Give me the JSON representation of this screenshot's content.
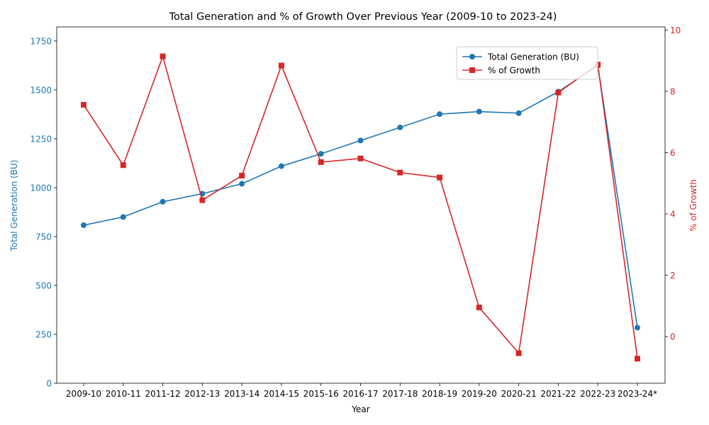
{
  "chart_data": {
    "type": "line",
    "title": "Total Generation and % of Growth Over Previous Year (2009-10 to 2023-24)",
    "xlabel": "Year",
    "categories": [
      "2009-10",
      "2010-11",
      "2011-12",
      "2012-13",
      "2013-14",
      "2014-15",
      "2015-16",
      "2016-17",
      "2017-18",
      "2018-19",
      "2019-20",
      "2020-21",
      "2021-22",
      "2022-23",
      "2023-24*"
    ],
    "series": [
      {
        "name": "Total Generation (BU)",
        "axis": "left",
        "color": "#1f77b4",
        "marker": "circle",
        "values": [
          808,
          850,
          928,
          969,
          1020,
          1110,
          1173,
          1241,
          1308,
          1376,
          1389,
          1381,
          1491,
          1624,
          284
        ]
      },
      {
        "name": "% of Growth",
        "axis": "right",
        "color": "#d62728",
        "marker": "square",
        "values": [
          7.56,
          5.59,
          9.14,
          4.45,
          5.25,
          8.84,
          5.69,
          5.81,
          5.35,
          5.19,
          0.95,
          -0.54,
          7.96,
          8.87,
          -0.72
        ]
      }
    ],
    "y_left": {
      "label": "Total Generation (BU)",
      "ylim": [
        0,
        1822
      ],
      "ticks": [
        0,
        250,
        500,
        750,
        1000,
        1250,
        1500,
        1750
      ],
      "color": "#1f77b4"
    },
    "y_right": {
      "label": "% of Growth",
      "ylim": [
        -1.52,
        10.1
      ],
      "ticks": [
        0,
        2,
        4,
        6,
        8,
        10
      ],
      "color": "#d62728"
    },
    "grid": false,
    "legend_position": "upper-right"
  }
}
